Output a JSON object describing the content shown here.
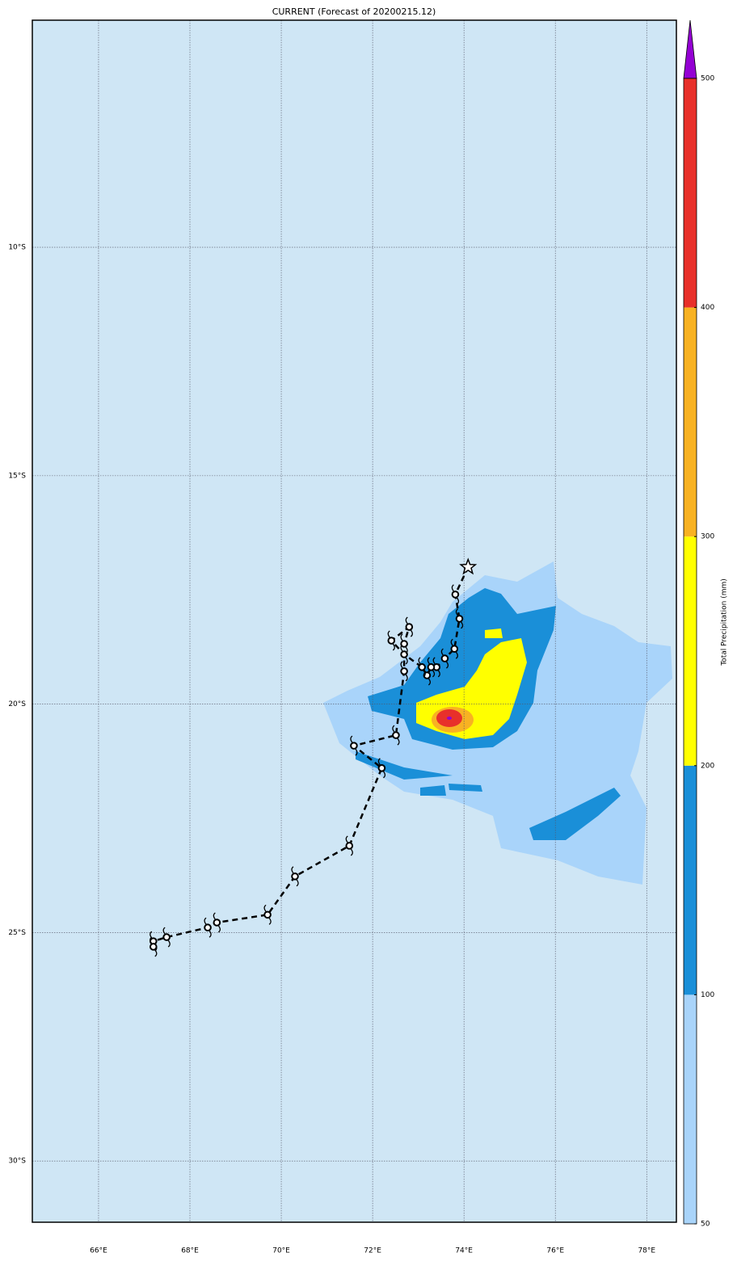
{
  "chart_data": {
    "type": "map",
    "title": "CURRENT (Forecast of 20200215.12)",
    "xlim": [
      64.55,
      78.65
    ],
    "ylim": [
      -31.34,
      -5.03
    ],
    "xticks": [
      {
        "value": 66,
        "label": "66°E"
      },
      {
        "value": 68,
        "label": "68°E"
      },
      {
        "value": 70,
        "label": "70°E"
      },
      {
        "value": 72,
        "label": "72°E"
      },
      {
        "value": 74,
        "label": "74°E"
      },
      {
        "value": 76,
        "label": "76°E"
      },
      {
        "value": 78,
        "label": "78°E"
      }
    ],
    "yticks": [
      {
        "value": -10,
        "label": "10°S"
      },
      {
        "value": -15,
        "label": "15°S"
      },
      {
        "value": -20,
        "label": "20°S"
      },
      {
        "value": -25,
        "label": "25°S"
      },
      {
        "value": -30,
        "label": "30°S"
      }
    ],
    "grid": true,
    "track": {
      "color": "#000000",
      "lon": [
        74.09,
        73.81,
        73.9,
        73.79,
        73.58,
        73.4,
        73.28,
        73.19,
        73.08,
        72.69,
        72.41,
        72.8,
        72.69,
        72.69,
        72.51,
        71.59,
        72.2,
        71.49,
        70.3,
        69.7,
        68.59,
        68.39,
        67.49,
        67.2,
        67.2
      ],
      "lat": [
        -17.0,
        -17.6,
        -18.13,
        -18.79,
        -19.0,
        -19.19,
        -19.19,
        -19.37,
        -19.19,
        -18.91,
        -18.61,
        -18.31,
        -18.68,
        -19.28,
        -20.68,
        -20.91,
        -21.4,
        -23.1,
        -23.77,
        -24.61,
        -24.78,
        -24.89,
        -25.1,
        -25.19,
        -25.31
      ]
    },
    "colorbar": {
      "label": "Total Precipitation (mm)",
      "levels": [
        50,
        100,
        200,
        300,
        400,
        500
      ],
      "colors": [
        "#a9d4fa",
        "#1a8fd8",
        "#ffff00",
        "#f8b222",
        "#e8302a"
      ],
      "extend_color": "#9400d3"
    }
  }
}
